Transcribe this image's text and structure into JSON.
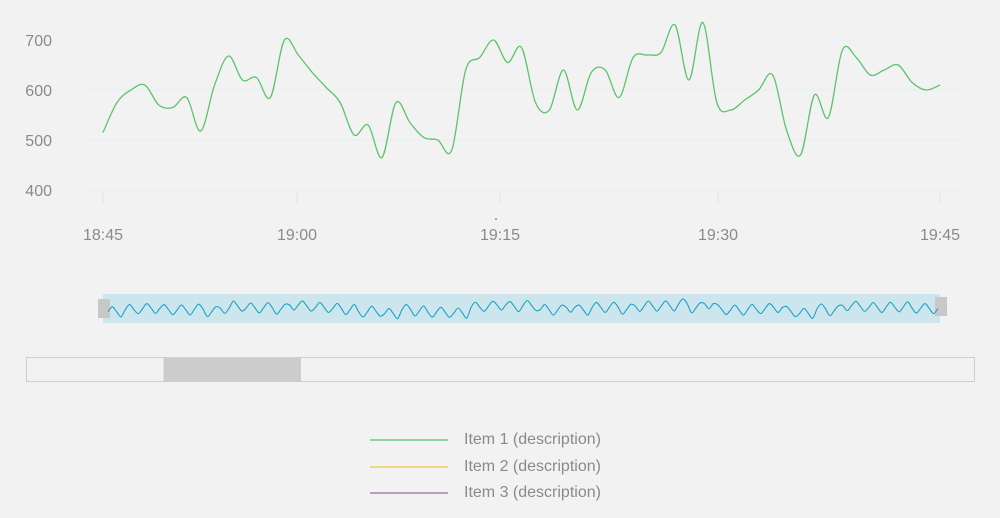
{
  "chart_data": {
    "type": "line",
    "title": "",
    "xlabel": "",
    "ylabel": "",
    "x_ticks": [
      "18:45",
      "19:00",
      "19:15",
      "19:30",
      "19:45"
    ],
    "y_ticks": [
      400,
      500,
      600,
      700
    ],
    "x_range": [
      "18:45",
      "19:45"
    ],
    "ylim": [
      390,
      760
    ],
    "grid": {
      "horizontal": true,
      "vertical": false
    },
    "series": [
      {
        "name": "Item 1 (description)",
        "color": "#5cc46a",
        "x": [
          "18:45",
          "18:46",
          "18:47",
          "18:48",
          "18:49",
          "18:50",
          "18:51",
          "18:52",
          "18:53",
          "18:54",
          "18:55",
          "18:56",
          "18:57",
          "18:58",
          "18:59",
          "19:00",
          "19:01",
          "19:02",
          "19:03",
          "19:04",
          "19:05",
          "19:06",
          "19:07",
          "19:08",
          "19:09",
          "19:10",
          "19:11",
          "19:12",
          "19:13",
          "19:14",
          "19:15",
          "19:16",
          "19:17",
          "19:18",
          "19:19",
          "19:20",
          "19:21",
          "19:22",
          "19:23",
          "19:24",
          "19:25",
          "19:26",
          "19:27",
          "19:28",
          "19:29",
          "19:30",
          "19:31",
          "19:32",
          "19:33",
          "19:34",
          "19:35",
          "19:36",
          "19:37",
          "19:38",
          "19:39",
          "19:40",
          "19:41",
          "19:42",
          "19:43",
          "19:44",
          "19:45"
        ],
        "values": [
          515,
          575,
          600,
          610,
          570,
          565,
          585,
          518,
          610,
          668,
          620,
          625,
          585,
          700,
          670,
          635,
          605,
          575,
          510,
          530,
          465,
          575,
          535,
          505,
          500,
          480,
          640,
          665,
          700,
          655,
          685,
          575,
          560,
          640,
          560,
          635,
          640,
          585,
          665,
          670,
          675,
          730,
          620,
          735,
          575,
          560,
          580,
          600,
          630,
          520,
          470,
          590,
          545,
          680,
          665,
          630,
          640,
          650,
          615,
          600,
          610
        ]
      },
      {
        "name": "Item 2 (description)",
        "color": "#f4c542",
        "values": []
      },
      {
        "name": "Item 3 (description)",
        "color": "#9b6aa8",
        "values": []
      }
    ]
  },
  "navigator": {
    "line_color": "#1aa3c4",
    "selection_color": "#cde6ee",
    "handle_color": "#c8c8c8"
  },
  "scrollbar": {
    "track_color": "#f2f2f2",
    "thumb_color": "#cccccc",
    "thumb_start": 0.145,
    "thumb_end": 0.29
  }
}
